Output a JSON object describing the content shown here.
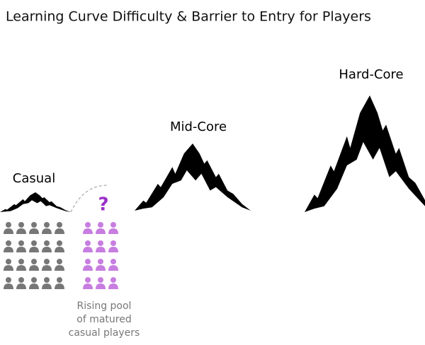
{
  "title": "Learning Curve Difficulty & Barrier to Entry for Players",
  "tiers": [
    {
      "label": "Casual"
    },
    {
      "label": "Mid-Core"
    },
    {
      "label": "Hard-Core"
    }
  ],
  "question": "?",
  "caption": [
    "Rising pool",
    "of matured",
    "casual players"
  ]
}
